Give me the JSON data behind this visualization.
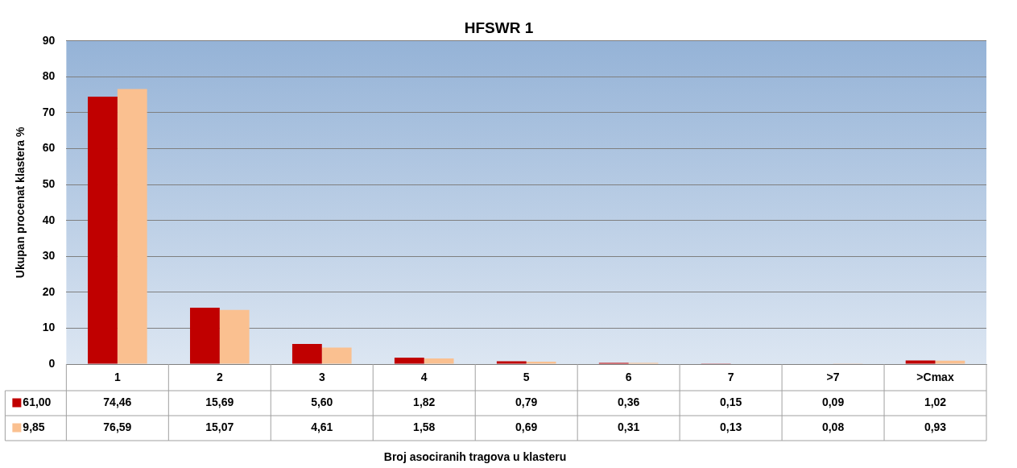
{
  "chart_data": {
    "type": "bar",
    "title": "HFSWR 1",
    "annotations": [
      "Broj asociranih tragova u klasteru"
    ],
    "ylabel": "Ukupan procenat klastera %",
    "categories": [
      "1",
      "2",
      "3",
      "4",
      "5",
      "6",
      "7",
      ">7",
      ">Cmax"
    ],
    "series": [
      {
        "name": "61,00",
        "color": "#c00000",
        "values": [
          74.46,
          15.69,
          5.6,
          1.82,
          0.79,
          0.36,
          0.15,
          0.09,
          1.02
        ],
        "value_labels": [
          "74,46",
          "15,69",
          "5,60",
          "1,82",
          "0,79",
          "0,36",
          "0,15",
          "0,09",
          "1,02"
        ]
      },
      {
        "name": "9,85",
        "color": "#fac090",
        "values": [
          76.59,
          15.07,
          4.61,
          1.58,
          0.69,
          0.31,
          0.13,
          0.08,
          0.93
        ],
        "value_labels": [
          "76,59",
          "15,07",
          "4,61",
          "1,58",
          "0,69",
          "0,31",
          "0,13",
          "0,08",
          "0,93"
        ]
      }
    ],
    "ylim": [
      0,
      90
    ],
    "yticks": [
      0,
      10,
      20,
      30,
      40,
      50,
      60,
      70,
      80,
      90
    ],
    "grid": "y",
    "legend": "bottom left"
  }
}
